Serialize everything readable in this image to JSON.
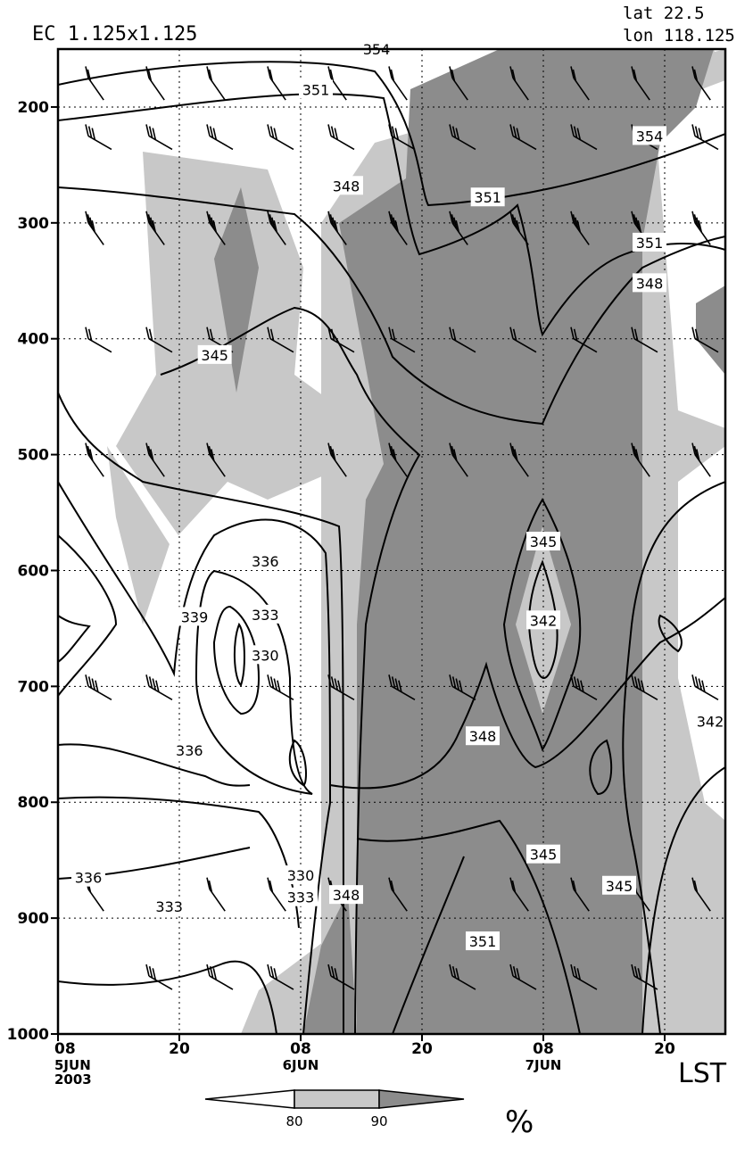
{
  "header": {
    "model_label": "EC 1.125x1.125",
    "lat_label": "lat 22.5",
    "lon_label": "lon 118.125"
  },
  "time_axis_label": "LST",
  "colorbar": {
    "unit": "%",
    "ticks": [
      "80",
      "90"
    ],
    "colors": [
      "#ffffff",
      "#c8c8c8",
      "#8c8c8c"
    ]
  },
  "chart_data": {
    "type": "contour",
    "yaxis": {
      "variable": "pressure (hPa)",
      "range": [
        1000,
        150
      ],
      "ticks": [
        "200",
        "300",
        "400",
        "500",
        "600",
        "700",
        "800",
        "900",
        "1000"
      ]
    },
    "xaxis": {
      "range_hours": [
        0,
        66
      ],
      "ticks": [
        {
          "hour": 0,
          "time": "08",
          "date": "5JUN",
          "year": "2003"
        },
        {
          "hour": 12,
          "time": "20",
          "date": "",
          "year": ""
        },
        {
          "hour": 24,
          "time": "08",
          "date": "6JUN",
          "year": ""
        },
        {
          "hour": 36,
          "time": "20",
          "date": "",
          "year": ""
        },
        {
          "hour": 48,
          "time": "08",
          "date": "7JUN",
          "year": ""
        },
        {
          "hour": 60,
          "time": "20",
          "date": "",
          "year": ""
        }
      ]
    },
    "shading": "relative humidity (%), levels 80 and 90",
    "contour_labels": [
      {
        "text": "354",
        "hour": 31.5,
        "p": 150
      },
      {
        "text": "351",
        "hour": 25.5,
        "p": 185
      },
      {
        "text": "354",
        "hour": 58.5,
        "p": 225
      },
      {
        "text": "348",
        "hour": 28.5,
        "p": 268
      },
      {
        "text": "351",
        "hour": 42.5,
        "p": 278
      },
      {
        "text": "351",
        "hour": 58.5,
        "p": 317
      },
      {
        "text": "348",
        "hour": 58.5,
        "p": 352
      },
      {
        "text": "345",
        "hour": 15.5,
        "p": 414
      },
      {
        "text": "345",
        "hour": 48,
        "p": 575
      },
      {
        "text": "336",
        "hour": 20.5,
        "p": 592
      },
      {
        "text": "333",
        "hour": 20.5,
        "p": 638
      },
      {
        "text": "339",
        "hour": 13.5,
        "p": 640
      },
      {
        "text": "342",
        "hour": 48,
        "p": 643
      },
      {
        "text": "330",
        "hour": 20.5,
        "p": 673
      },
      {
        "text": "342",
        "hour": 64.5,
        "p": 730
      },
      {
        "text": "336",
        "hour": 13,
        "p": 755
      },
      {
        "text": "348",
        "hour": 42,
        "p": 743
      },
      {
        "text": "345",
        "hour": 48,
        "p": 845
      },
      {
        "text": "336",
        "hour": 3,
        "p": 865
      },
      {
        "text": "330",
        "hour": 24,
        "p": 863
      },
      {
        "text": "345",
        "hour": 55.5,
        "p": 872
      },
      {
        "text": "333",
        "hour": 24,
        "p": 882
      },
      {
        "text": "348",
        "hour": 28.5,
        "p": 880
      },
      {
        "text": "333",
        "hour": 11,
        "p": 890
      },
      {
        "text": "351",
        "hour": 42,
        "p": 920
      }
    ]
  }
}
